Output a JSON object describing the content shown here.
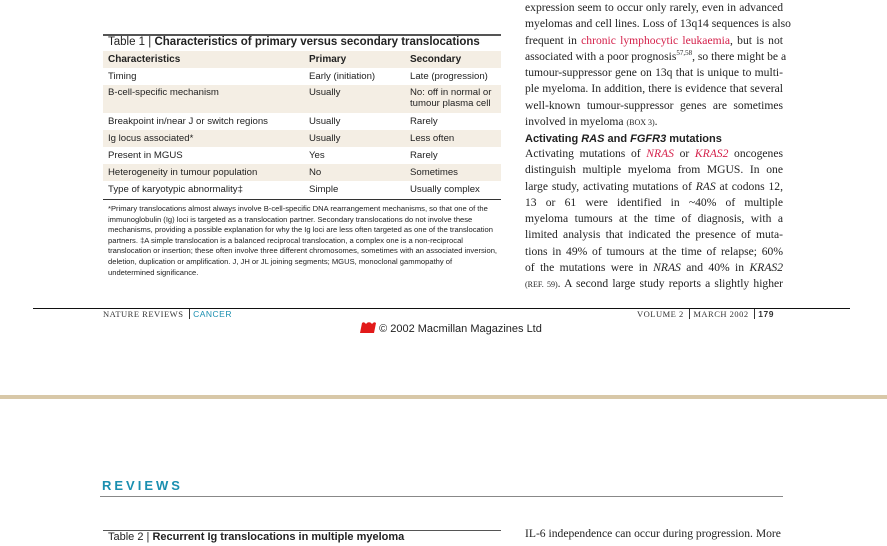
{
  "table1": {
    "label": "Table 1 | ",
    "title": "Characteristics of primary versus secondary translocations",
    "headers": [
      "Characteristics",
      "Primary",
      "Secondary"
    ],
    "rows": [
      [
        "Timing",
        "Early (initiation)",
        "Late (progression)"
      ],
      [
        "B-cell-specific mechanism",
        "Usually",
        "No: off in normal or tumour plasma cell"
      ],
      [
        "Breakpoint in/near J or switch regions",
        "Usually",
        "Rarely"
      ],
      [
        "Ig locus associated*",
        "Usually",
        "Less often"
      ],
      [
        "Present in MGUS",
        "Yes",
        "Rarely"
      ],
      [
        "Heterogeneity in tumour population",
        "No",
        "Sometimes"
      ],
      [
        "Type of karyotypic abnormality‡",
        "Simple",
        "Usually complex"
      ]
    ],
    "footnote": "*Primary translocations almost always involve B-cell-specific DNA rearrangement mechanisms, so that one of the immunoglobulin (Ig) loci is targeted as a translocation partner. Secondary translocations do not involve these mechanisms, providing a possible explanation for why the Ig loci are less often targeted as one of the translocation partners. ‡A simple translocation is a balanced reciprocal translocation, a complex one is a non-reciprocal translocation or insertion; these often involve three different chromosomes, sometimes with an associated inversion, deletion, duplication or amplification. J, JH or JL joining segments; MGUS, monoclonal gammopathy of undetermined significance."
  },
  "right_column": {
    "p1": {
      "l1": "expression seem to occur only rarely, even in advanced",
      "l2": "myelomas and cell lines. Loss of 13q14 sequences is also",
      "l3a": "frequent in ",
      "l3link": "chronic lymphocytic leukaemia",
      "l3b": ", but is not",
      "l4a": "associated with a poor prognosis",
      "l4sup": "57,58",
      "l4b": ", so there might be a",
      "l5": "tumour-suppressor gene on 13q that is unique to multi-",
      "l6": "ple myeloma. In addition, there is evidence that several",
      "l7": "well-known tumour-suppressor genes are sometimes",
      "l8a": "involved in myeloma ",
      "l8ref": "(BOX 3)",
      "l8b": "."
    },
    "heading": {
      "a": "Activating ",
      "b": "RAS",
      "c": " and ",
      "d": "FGFR3",
      "e": " mutations"
    },
    "p2": {
      "l1a": "Activating mutations of ",
      "l1r1": "NRAS",
      "l1b": " or ",
      "l1r2": "KRAS2",
      "l1c": " oncogenes",
      "l2": "distinguish multiple myeloma from MGUS. In one",
      "l3a": "large study, activating mutations of ",
      "l3i": "RAS",
      "l3b": " at codons 12,",
      "l4": "13 or 61 were identified in ~40% of multiple",
      "l5": "myeloma tumours at the time of diagnosis, with a",
      "l6": "limited analysis that indicated the presence of muta-",
      "l7": "tions in 49% of tumours at the time of relapse; 60%",
      "l8a": "of the mutations were in ",
      "l8i1": "NRAS",
      "l8b": " and 40% in ",
      "l8i2": "KRAS2",
      "l9ref": "(REF. 59)",
      "l9b": ". A second large study reports a slightly higher"
    }
  },
  "footer": {
    "journal": "NATURE REVIEWS",
    "section": "CANCER",
    "volume": "VOLUME 2",
    "date": "MARCH 2002",
    "page": "179",
    "copyright": "© 2002 Macmillan Magazines Ltd"
  },
  "page2": {
    "section_label": "REVIEWS",
    "table2_label": "Table 2 | ",
    "table2_title": "Recurrent Ig translocations in multiple myeloma",
    "right_text": "IL-6 independence can occur during progression. More"
  },
  "colors": {
    "accent_red": "#d4204a",
    "accent_teal": "#1a8fb0",
    "table_shade": "#f4eee4",
    "page_divider": "#d8c8a8"
  }
}
